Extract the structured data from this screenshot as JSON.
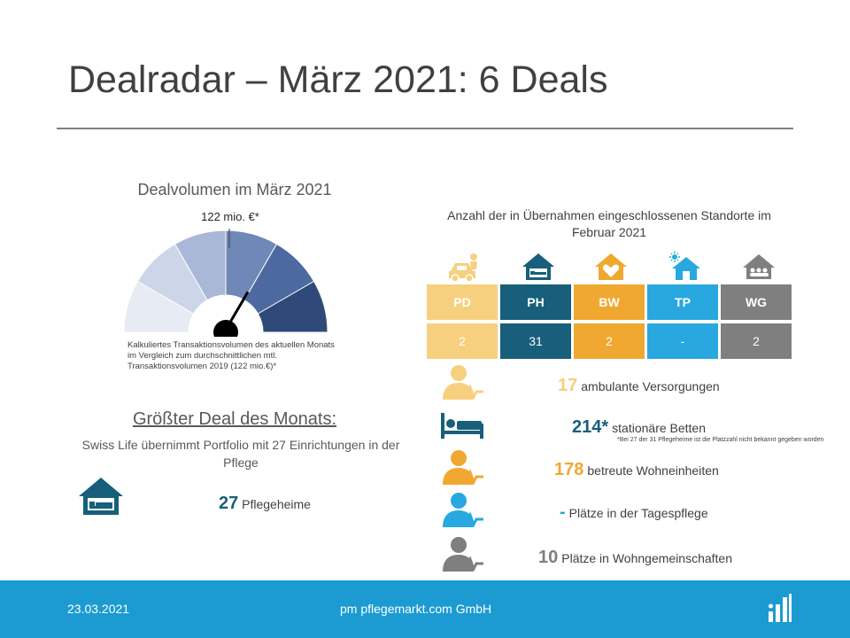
{
  "title": "Dealradar – März 2021: 6 Deals",
  "gauge": {
    "title": "Dealvolumen  im  März 2021",
    "value_label": "122 mio. €*",
    "note": "Kalkuliertes Transaktionsvolumen des aktuellen Monats im Vergleich zum durchschnittlichen mtl. Transaktionsvolumen 2019 (122 mio.€)*",
    "needle_fraction": 0.66,
    "segment_colors": [
      "#e6ebf4",
      "#cdd6e8",
      "#a9b8d6",
      "#7088b8",
      "#4c6a9f",
      "#2f4a78"
    ]
  },
  "largest_deal": {
    "heading": "Größter Deal des Monats:",
    "description": "Swiss Life übernimmt  Portfolio mit 27 Einrichtungen  in der Pflege",
    "icon": "house-bed-icon",
    "count": "27",
    "label": "Pflegeheime"
  },
  "table": {
    "title": "Anzahl der in Übernahmen  eingeschlossenen Standorte im Februar 2021",
    "columns": [
      {
        "key": "PD",
        "value": "2",
        "color": "#f7d07f",
        "icon": "car-person-icon",
        "icon_color": "#f7d07f"
      },
      {
        "key": "PH",
        "value": "31",
        "color": "#175f7a",
        "icon": "house-bed-icon",
        "icon_color": "#175f7a"
      },
      {
        "key": "BW",
        "value": "2",
        "color": "#f0a830",
        "icon": "house-heart-icon",
        "icon_color": "#f0a830"
      },
      {
        "key": "TP",
        "value": "-",
        "color": "#29a8e0",
        "icon": "house-sun-icon",
        "icon_color": "#29a8e0"
      },
      {
        "key": "WG",
        "value": "2",
        "color": "#7f7f7f",
        "icon": "house-people-icon",
        "icon_color": "#7f7f7f"
      }
    ]
  },
  "stats": [
    {
      "count": "17",
      "label": "ambulante  Versorgungen",
      "color": "#f7d07f",
      "icon": "person-heartbeat-icon"
    },
    {
      "count": "214*",
      "label": "stationäre Betten",
      "color": "#175f7a",
      "icon": "bed-icon",
      "note": "*Bei 27 der 31 Pflegeheime ist die Platzzahl nicht bekannt gegeben worden"
    },
    {
      "count": "178",
      "label": "betreute  Wohneinheiten",
      "color": "#f0a830",
      "icon": "person-heartbeat-icon"
    },
    {
      "count": "-",
      "label": "Plätze in der Tagespflege",
      "color": "#29a8e0",
      "icon": "person-heartbeat-icon"
    },
    {
      "count": "10",
      "label": "Plätze  in  Wohngemeinschaften",
      "color": "#7f7f7f",
      "icon": "person-heartbeat-icon"
    }
  ],
  "footer": {
    "date": "23.03.2021",
    "company": "pm pflegemarkt.com GmbH",
    "logo": "bar-chart-logo-icon",
    "color": "#1b9bd1"
  }
}
